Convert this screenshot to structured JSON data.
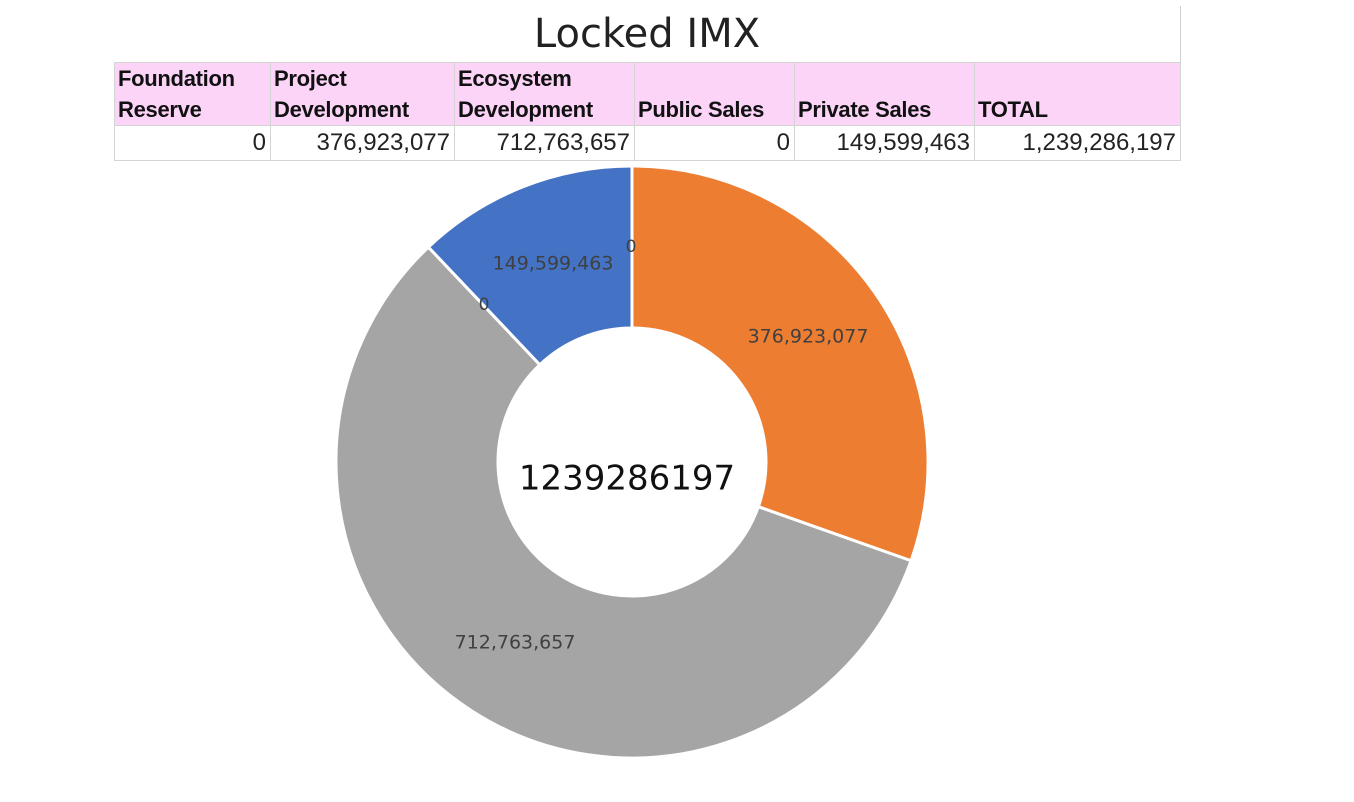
{
  "title": "Locked IMX",
  "table": {
    "headers": [
      "Foundation\nReserve",
      "Project\nDevelopment",
      "Ecosystem\nDevelopment",
      "Public Sales",
      "Private Sales",
      "TOTAL"
    ],
    "values": [
      "0",
      "376,923,077",
      "712,763,657",
      "0",
      "149,599,463",
      "1,239,286,197"
    ]
  },
  "chart_data": {
    "type": "pie",
    "variant": "donut",
    "center_label": "1239286197",
    "slices": [
      {
        "value": 0,
        "label": "0",
        "color": "#4f81bd"
      },
      {
        "value": 376923077,
        "label": "376,923,077",
        "color": "#ed7d31"
      },
      {
        "value": 712763657,
        "label": "712,763,657",
        "color": "#a5a5a5"
      },
      {
        "value": 0,
        "label": "0",
        "color": "#ffc000"
      },
      {
        "value": 149599463,
        "label": "149,599,463",
        "color": "#4472c4"
      }
    ],
    "total": 1239286197,
    "legend": "none"
  }
}
